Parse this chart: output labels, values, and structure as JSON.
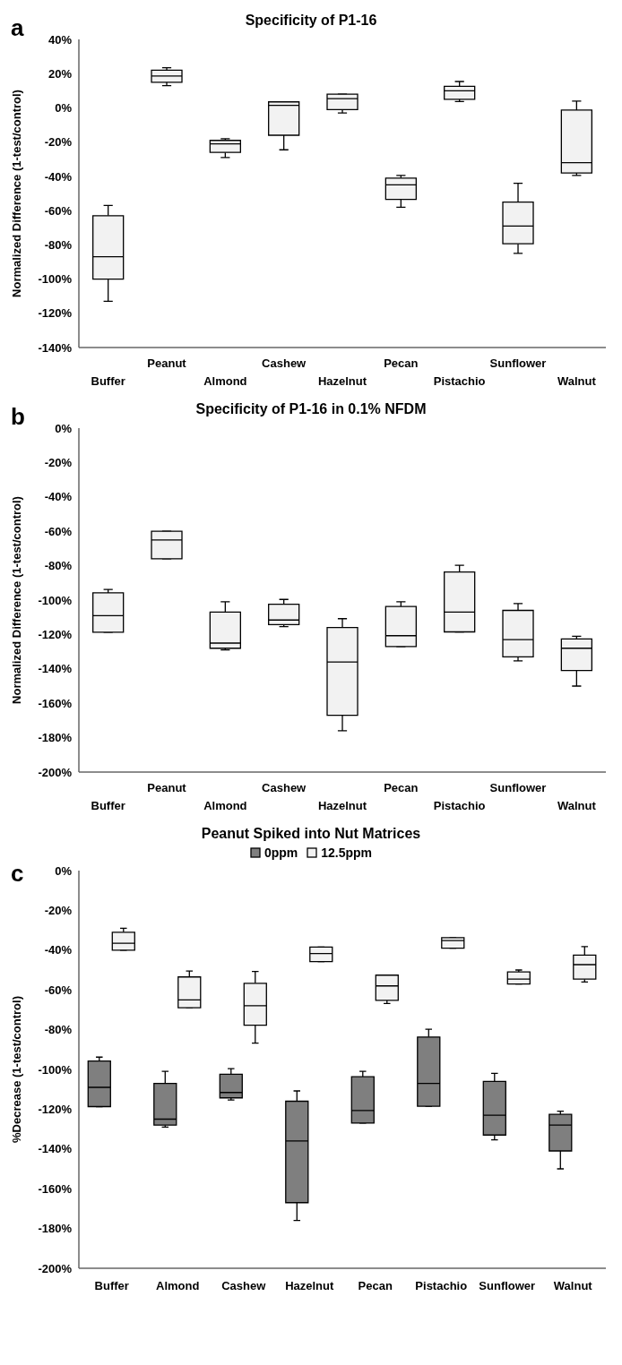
{
  "chart_data": [
    {
      "type": "box",
      "title": "Specificity of P1-16",
      "ylabel": "Normalized Difference (1-test/control)",
      "annotations": [
        "a"
      ],
      "color": "#f2f2f2",
      "categories": [
        "Buffer",
        "Peanut",
        "Almond",
        "Cashew",
        "Hazelnut",
        "Pecan",
        "Pistachio",
        "Sunflower",
        "Walnut"
      ],
      "boxes": [
        {
          "low": -113,
          "q1": -100,
          "median": -87,
          "q3": -63,
          "high": -57
        },
        {
          "low": 13,
          "q1": 15,
          "median": 18.6,
          "q3": 22,
          "high": 23.5
        },
        {
          "low": -29,
          "q1": -26,
          "median": -21,
          "q3": -19,
          "high": -18
        },
        {
          "low": -24.5,
          "q1": -16,
          "median": 1.5,
          "q3": 3.5,
          "high": 3.5
        },
        {
          "low": -3,
          "q1": -1,
          "median": 5.4,
          "q3": 8,
          "high": 8
        },
        {
          "low": -58,
          "q1": -53.5,
          "median": -45,
          "q3": -41,
          "high": -39.5
        },
        {
          "low": 3.7,
          "q1": 5,
          "median": 10,
          "q3": 12.6,
          "high": 15.4
        },
        {
          "low": -85,
          "q1": -79.4,
          "median": -69,
          "q3": -55,
          "high": -44
        },
        {
          "low": -39.5,
          "q1": -38,
          "median": -32,
          "q3": -1.3,
          "high": 4
        }
      ],
      "ylim": [
        -140,
        40
      ],
      "yticks": [
        {
          "value": -140,
          "label": "-140%"
        },
        {
          "value": -120,
          "label": "-120%"
        },
        {
          "value": -100,
          "label": "-100%"
        },
        {
          "value": -80,
          "label": "-80%"
        },
        {
          "value": -60,
          "label": "-60%"
        },
        {
          "value": -40,
          "label": "-40%"
        },
        {
          "value": -20,
          "label": "-20%"
        },
        {
          "value": 0,
          "label": "0%"
        },
        {
          "value": 20,
          "label": "20%"
        },
        {
          "value": 40,
          "label": "40%"
        }
      ]
    },
    {
      "type": "box",
      "title": "Specificity of P1-16 in 0.1% NFDM",
      "ylabel": "Normalized Difference  (1-test/control)",
      "annotations": [
        "b"
      ],
      "color": "#f2f2f2",
      "categories": [
        "Buffer",
        "Peanut",
        "Almond",
        "Cashew",
        "Hazelnut",
        "Pecan",
        "Pistachio",
        "Sunflower",
        "Walnut"
      ],
      "boxes": [
        {
          "low": -118.7,
          "q1": -118.7,
          "median": -109,
          "q3": -95.8,
          "high": -93.8
        },
        {
          "low": -76,
          "q1": -76,
          "median": -65,
          "q3": -60,
          "high": -60
        },
        {
          "low": -129,
          "q1": -128,
          "median": -125,
          "q3": -107,
          "high": -101
        },
        {
          "low": -115.4,
          "q1": -114.3,
          "median": -111.6,
          "q3": -102.4,
          "high": -99.6
        },
        {
          "low": -176,
          "q1": -167,
          "median": -136,
          "q3": -116,
          "high": -110.8
        },
        {
          "low": -127,
          "q1": -127,
          "median": -120.7,
          "q3": -103.7,
          "high": -101
        },
        {
          "low": -118.5,
          "q1": -118.5,
          "median": -107,
          "q3": -83.7,
          "high": -79.8
        },
        {
          "low": -135.4,
          "q1": -133,
          "median": -123,
          "q3": -106,
          "high": -102
        },
        {
          "low": -150,
          "q1": -141,
          "median": -128,
          "q3": -122.6,
          "high": -121
        }
      ],
      "ylim": [
        -200,
        0
      ],
      "yticks": [
        {
          "value": -200,
          "label": "-200%"
        },
        {
          "value": -180,
          "label": "-180%"
        },
        {
          "value": -160,
          "label": "-160%"
        },
        {
          "value": -140,
          "label": "-140%"
        },
        {
          "value": -120,
          "label": "-120%"
        },
        {
          "value": -100,
          "label": "-100%"
        },
        {
          "value": -80,
          "label": "-80%"
        },
        {
          "value": -60,
          "label": "-60%"
        },
        {
          "value": -40,
          "label": "-40%"
        },
        {
          "value": -20,
          "label": "-20%"
        },
        {
          "value": 0,
          "label": "0%"
        }
      ]
    },
    {
      "type": "box",
      "title": "Peanut Spiked into Nut Matrices",
      "ylabel": "%Decrease (1-test/control)",
      "annotations": [
        "c"
      ],
      "legend": "top",
      "categories": [
        "Buffer",
        "Almond",
        "Cashew",
        "Hazelnut",
        "Pecan",
        "Pistachio",
        "Sunflower",
        "Walnut"
      ],
      "series": [
        {
          "name": "0ppm",
          "color": "#7f7f7f",
          "boxes": [
            {
              "low": -118.7,
              "q1": -118.7,
              "median": -109,
              "q3": -95.8,
              "high": -93.8
            },
            {
              "low": -129,
              "q1": -128,
              "median": -125,
              "q3": -107,
              "high": -101
            },
            {
              "low": -115.4,
              "q1": -114.3,
              "median": -111.6,
              "q3": -102.4,
              "high": -99.6
            },
            {
              "low": -176,
              "q1": -167,
              "median": -136,
              "q3": -116,
              "high": -110.8
            },
            {
              "low": -127,
              "q1": -127,
              "median": -120.7,
              "q3": -103.7,
              "high": -101
            },
            {
              "low": -118.5,
              "q1": -118.5,
              "median": -107,
              "q3": -83.7,
              "high": -79.8
            },
            {
              "low": -135.4,
              "q1": -133,
              "median": -123,
              "q3": -106,
              "high": -102
            },
            {
              "low": -150,
              "q1": -141,
              "median": -128,
              "q3": -122.6,
              "high": -121
            }
          ]
        },
        {
          "name": "12.5ppm",
          "color": "#f2f2f2",
          "boxes": [
            {
              "low": -40,
              "q1": -40,
              "median": -36.5,
              "q3": -31,
              "high": -29
            },
            {
              "low": -69,
              "q1": -69,
              "median": -65,
              "q3": -53.5,
              "high": -50.5
            },
            {
              "low": -86.8,
              "q1": -77.8,
              "median": -68,
              "q3": -56.7,
              "high": -50.7
            },
            {
              "low": -45.8,
              "q1": -45.8,
              "median": -41.7,
              "q3": -38.5,
              "high": -38.5
            },
            {
              "low": -66.8,
              "q1": -65.3,
              "median": -58,
              "q3": -52.6,
              "high": -52.6
            },
            {
              "low": -39,
              "q1": -39,
              "median": -35.2,
              "q3": -33.7,
              "high": -33.7
            },
            {
              "low": -57,
              "q1": -57,
              "median": -54.6,
              "q3": -51,
              "high": -50
            },
            {
              "low": -56,
              "q1": -54.6,
              "median": -47.3,
              "q3": -42.5,
              "high": -38.2
            }
          ]
        }
      ],
      "ylim": [
        -200,
        0
      ],
      "yticks": [
        {
          "value": -200,
          "label": "-200%"
        },
        {
          "value": -180,
          "label": "-180%"
        },
        {
          "value": -160,
          "label": "-160%"
        },
        {
          "value": -140,
          "label": "-140%"
        },
        {
          "value": -120,
          "label": "-120%"
        },
        {
          "value": -100,
          "label": "-100%"
        },
        {
          "value": -80,
          "label": "-80%"
        },
        {
          "value": -60,
          "label": "-60%"
        },
        {
          "value": -40,
          "label": "-40%"
        },
        {
          "value": -20,
          "label": "-20%"
        },
        {
          "value": 0,
          "label": "0%"
        }
      ]
    }
  ]
}
